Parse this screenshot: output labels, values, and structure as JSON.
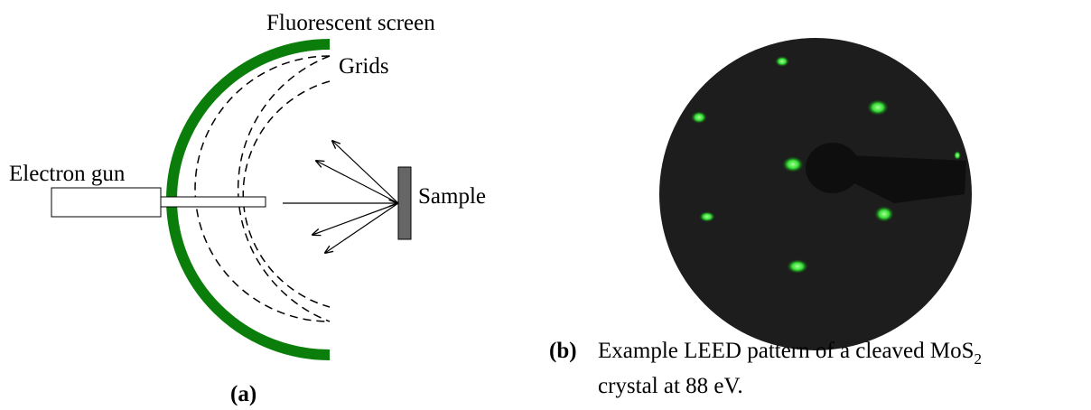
{
  "panel_a": {
    "labels": {
      "screen": "Fluorescent screen",
      "grids": "Grids",
      "gun": "Electron gun",
      "sample": "Sample"
    },
    "tag": "(a)"
  },
  "panel_b": {
    "tag": "(b)",
    "caption_line1": "Example LEED pattern of a cleaved MoS",
    "caption_subscript": "2",
    "caption_line2": "crystal at 88 eV."
  }
}
